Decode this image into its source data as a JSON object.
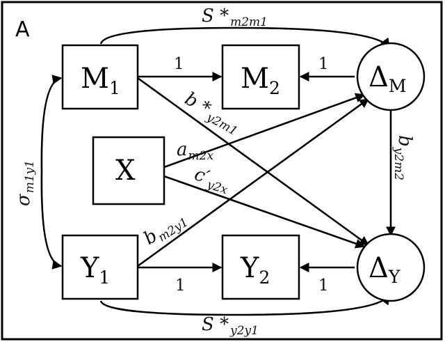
{
  "panel_label": "A",
  "nodes": {
    "M1": {
      "main": "M",
      "sub": "1"
    },
    "M2": {
      "main": "M",
      "sub": "2"
    },
    "X": {
      "main": "X"
    },
    "Y1": {
      "main": "Y",
      "sub": "1"
    },
    "Y2": {
      "main": "Y",
      "sub": "2"
    },
    "DM": {
      "main": "Δ",
      "sub": "M"
    },
    "DY": {
      "main": "Δ",
      "sub": "Y"
    }
  },
  "edge_labels": {
    "m1_m2": "1",
    "dm_m2": "1",
    "y1_y2": "1",
    "dy_y2": "1",
    "s_m2m1": {
      "base": "S *",
      "sub": "m2m1"
    },
    "s_y2y1": {
      "base": "S *",
      "sub": "y2y1"
    },
    "b_y2m1": {
      "base": "b *",
      "sub": "y2m1"
    },
    "a_m2x": {
      "base": "a",
      "sub": "m2x"
    },
    "c_y2x": {
      "base": "c′",
      "sub": "y2x"
    },
    "b_m2y1": {
      "base": "b",
      "sub": "m2y1"
    },
    "b_y2m2": {
      "base": "b",
      "sub": "y2m2"
    },
    "sigma_m1y1": {
      "base": "σ",
      "sub": "m1y1"
    }
  }
}
